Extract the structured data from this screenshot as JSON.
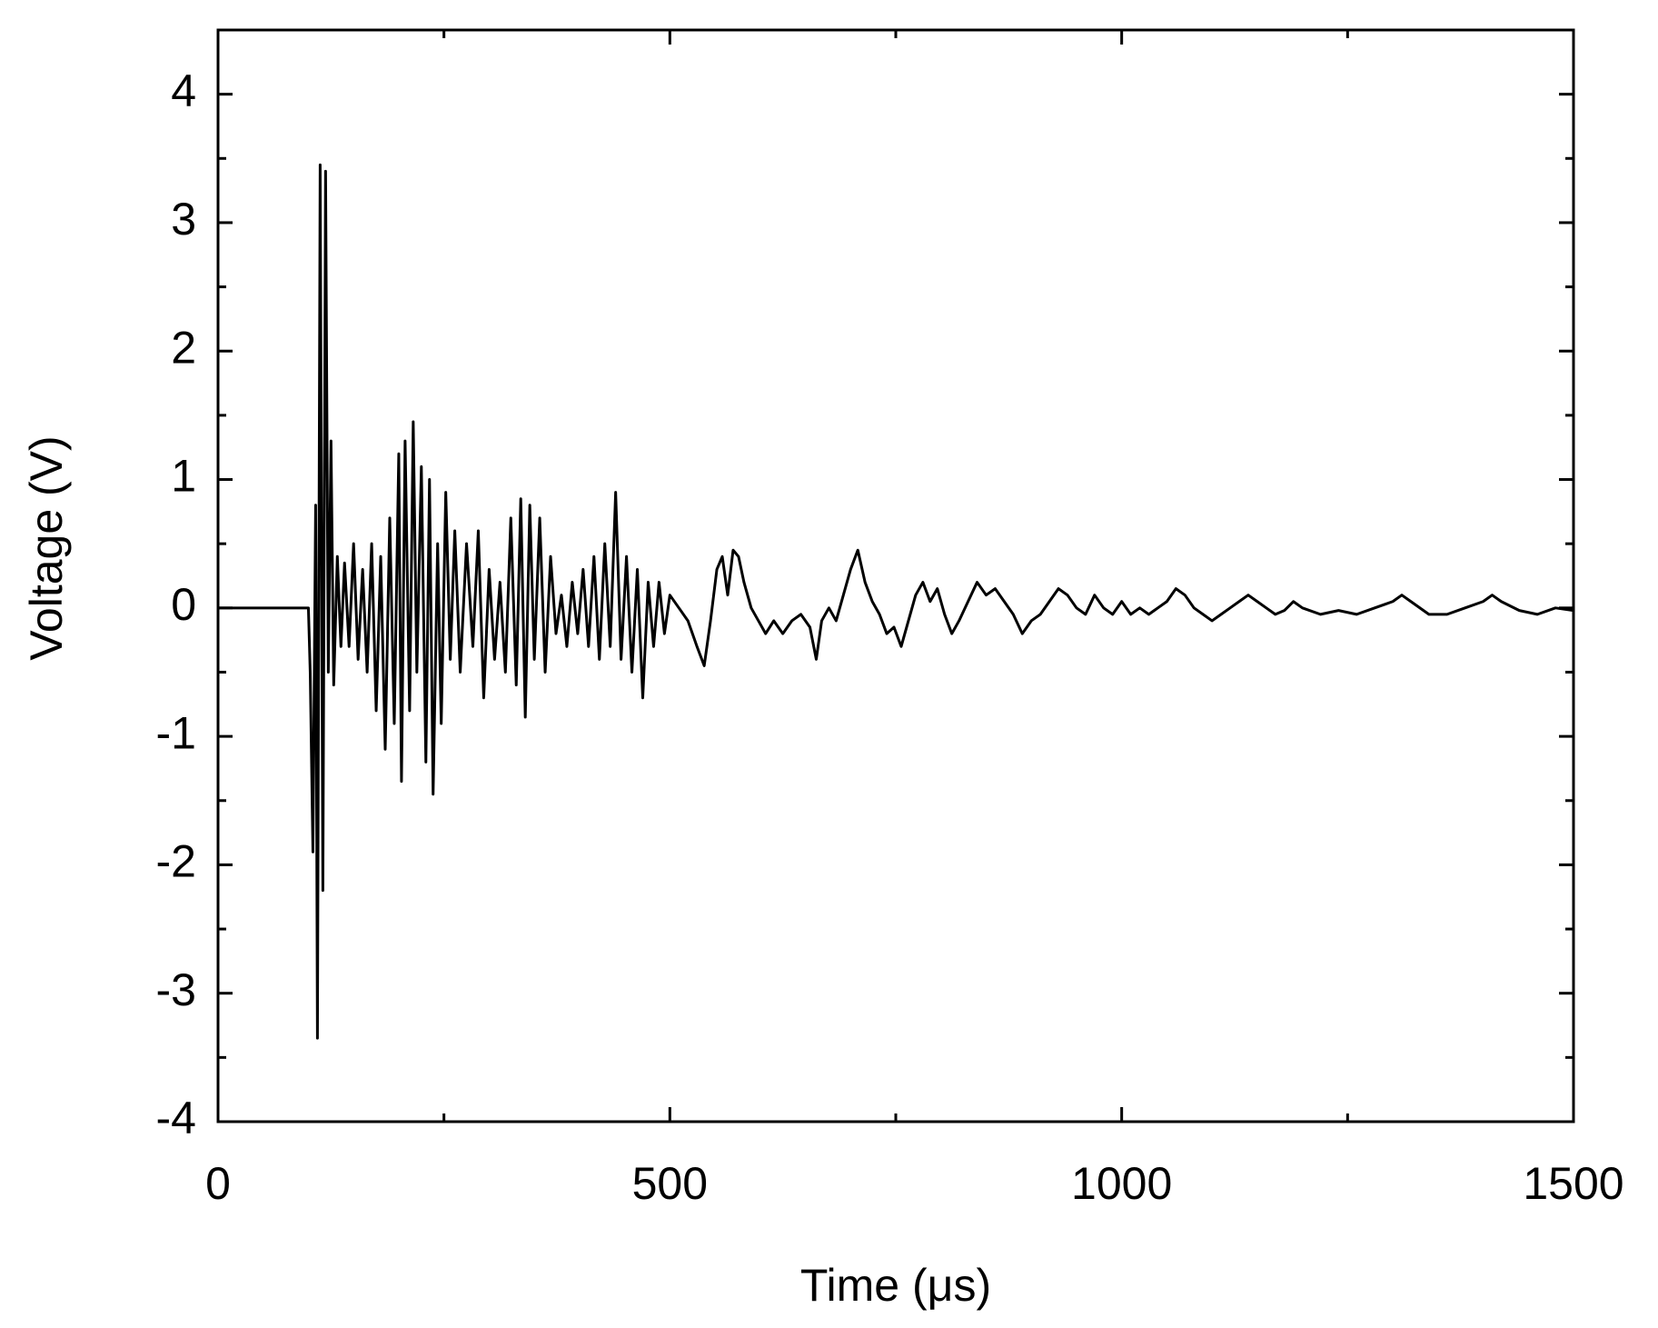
{
  "chart_data": {
    "type": "line",
    "x_label": "Time (μs)",
    "y_label": "Voltage (V)",
    "color": "#000000",
    "xlim": [
      0,
      1500
    ],
    "xticks": [
      0,
      500,
      1000,
      1500
    ],
    "xminorticks": [
      250,
      750,
      1250
    ],
    "ylim": [
      -4,
      4.5
    ],
    "yticks": [
      -4,
      -3,
      -2,
      -1,
      0,
      1,
      2,
      3,
      4
    ],
    "yminorticks": [
      -3.5,
      -2.5,
      -1.5,
      -0.5,
      0.5,
      1.5,
      2.5,
      3.5
    ],
    "x": [
      0,
      50,
      100,
      102,
      105,
      108,
      110,
      113,
      116,
      119,
      122,
      125,
      128,
      132,
      136,
      140,
      145,
      150,
      155,
      160,
      165,
      170,
      175,
      180,
      185,
      190,
      195,
      200,
      203,
      207,
      212,
      216,
      220,
      225,
      230,
      234,
      238,
      243,
      247,
      252,
      257,
      262,
      268,
      275,
      282,
      288,
      294,
      300,
      306,
      312,
      318,
      324,
      330,
      335,
      340,
      345,
      350,
      356,
      362,
      368,
      374,
      380,
      386,
      392,
      398,
      404,
      410,
      416,
      422,
      428,
      434,
      440,
      446,
      452,
      458,
      464,
      470,
      476,
      482,
      488,
      494,
      500,
      510,
      520,
      530,
      538,
      545,
      552,
      558,
      564,
      570,
      576,
      582,
      590,
      598,
      606,
      615,
      625,
      635,
      645,
      655,
      662,
      668,
      676,
      684,
      692,
      700,
      708,
      716,
      724,
      732,
      740,
      748,
      756,
      764,
      772,
      780,
      788,
      796,
      804,
      812,
      820,
      830,
      840,
      850,
      860,
      870,
      880,
      890,
      900,
      910,
      920,
      930,
      940,
      950,
      960,
      970,
      980,
      990,
      1000,
      1010,
      1020,
      1030,
      1040,
      1050,
      1060,
      1070,
      1080,
      1090,
      1100,
      1110,
      1120,
      1130,
      1140,
      1150,
      1160,
      1170,
      1180,
      1190,
      1200,
      1220,
      1240,
      1260,
      1280,
      1300,
      1310,
      1320,
      1340,
      1360,
      1380,
      1400,
      1410,
      1420,
      1440,
      1460,
      1480,
      1500
    ],
    "values": [
      0,
      0,
      0,
      -0.5,
      -1.9,
      0.8,
      -3.35,
      3.45,
      -2.2,
      3.4,
      -0.5,
      1.3,
      -0.6,
      0.4,
      -0.3,
      0.35,
      -0.3,
      0.5,
      -0.4,
      0.3,
      -0.5,
      0.5,
      -0.8,
      0.4,
      -1.1,
      0.7,
      -0.9,
      1.2,
      -1.35,
      1.3,
      -0.8,
      1.45,
      -0.5,
      1.1,
      -1.2,
      1.0,
      -1.45,
      0.5,
      -0.9,
      0.9,
      -0.4,
      0.6,
      -0.5,
      0.5,
      -0.3,
      0.6,
      -0.7,
      0.3,
      -0.4,
      0.2,
      -0.5,
      0.7,
      -0.6,
      0.85,
      -0.85,
      0.8,
      -0.4,
      0.7,
      -0.5,
      0.4,
      -0.2,
      0.1,
      -0.3,
      0.2,
      -0.2,
      0.3,
      -0.3,
      0.4,
      -0.4,
      0.5,
      -0.3,
      0.9,
      -0.4,
      0.4,
      -0.5,
      0.3,
      -0.7,
      0.2,
      -0.3,
      0.2,
      -0.2,
      0.1,
      0.0,
      -0.1,
      -0.3,
      -0.45,
      -0.1,
      0.3,
      0.4,
      0.1,
      0.45,
      0.4,
      0.2,
      0.0,
      -0.1,
      -0.2,
      -0.1,
      -0.2,
      -0.1,
      -0.05,
      -0.15,
      -0.4,
      -0.1,
      0.0,
      -0.1,
      0.1,
      0.3,
      0.45,
      0.2,
      0.05,
      -0.05,
      -0.2,
      -0.15,
      -0.3,
      -0.1,
      0.1,
      0.2,
      0.05,
      0.15,
      -0.05,
      -0.2,
      -0.1,
      0.05,
      0.2,
      0.1,
      0.15,
      0.05,
      -0.05,
      -0.2,
      -0.1,
      -0.05,
      0.05,
      0.15,
      0.1,
      0.0,
      -0.05,
      0.1,
      0.0,
      -0.05,
      0.05,
      -0.05,
      0.0,
      -0.05,
      0.0,
      0.05,
      0.15,
      0.1,
      0.0,
      -0.05,
      -0.1,
      -0.05,
      0.0,
      0.05,
      0.1,
      0.05,
      0.0,
      -0.05,
      -0.02,
      0.05,
      0.0,
      -0.05,
      -0.02,
      -0.05,
      0.0,
      0.05,
      0.1,
      0.05,
      -0.05,
      -0.05,
      0.0,
      0.05,
      0.1,
      0.05,
      -0.02,
      -0.05,
      0.0,
      -0.02
    ]
  }
}
